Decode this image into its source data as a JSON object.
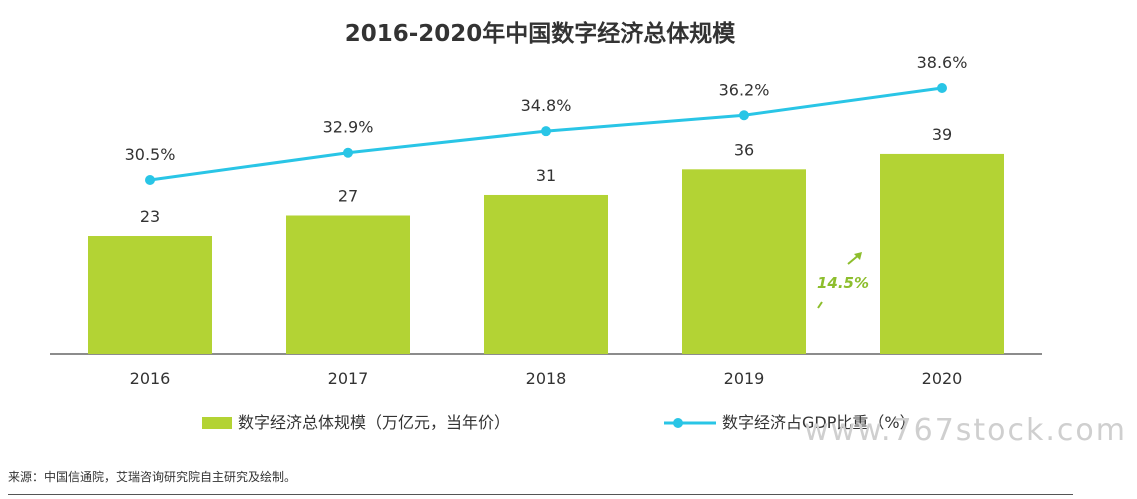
{
  "title": "2016-2020年中国数字经济总体规模",
  "chart_data": {
    "type": "bar",
    "categories": [
      "2016",
      "2017",
      "2018",
      "2019",
      "2020"
    ],
    "series": [
      {
        "name": "数字经济总体规模（万亿元，当年价）",
        "type": "bar",
        "values": [
          23,
          27,
          31,
          36,
          39
        ],
        "color": "#b3d334",
        "data_labels": [
          "23",
          "27",
          "31",
          "36",
          "39"
        ]
      },
      {
        "name": "数字经济占GDP比重（%）",
        "type": "line",
        "values": [
          30.5,
          32.9,
          34.8,
          36.2,
          38.6
        ],
        "color": "#29c5e6",
        "data_labels": [
          "30.5%",
          "32.9%",
          "34.8%",
          "36.2%",
          "38.6%"
        ]
      }
    ],
    "annotations": [
      {
        "text": "14.5%",
        "color": "#8dbe2d",
        "between": [
          "2019",
          "2020"
        ]
      }
    ],
    "grid": false,
    "legend": "bottom"
  },
  "watermark": "www.767stock.com",
  "source_note": "来源：中国信通院，艾瑞咨询研究院自主研究及绘制。"
}
